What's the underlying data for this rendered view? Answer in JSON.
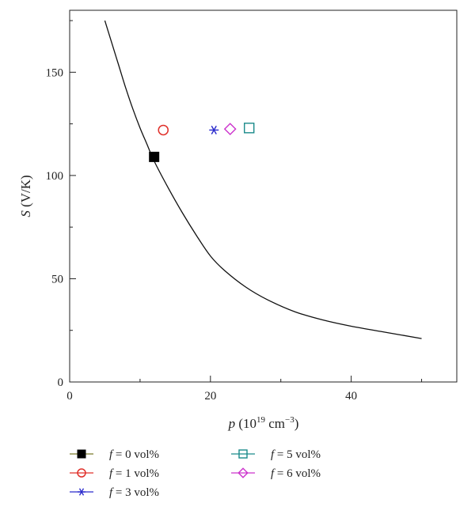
{
  "chart_data": {
    "type": "scatter",
    "title": "",
    "xlabel": {
      "var": "p",
      "prefix": " (10",
      "sup1": "19",
      "mid": " cm",
      "sup2": "−3",
      "suffix": ")"
    },
    "ylabel": {
      "var": "S",
      "rest": " (V/K)"
    },
    "xlim": [
      0,
      55
    ],
    "ylim": [
      0,
      180
    ],
    "xticks": [
      0,
      20,
      40
    ],
    "xticks_minor": [
      10,
      30,
      50
    ],
    "yticks": [
      0,
      50,
      100,
      150
    ],
    "yticks_minor": [
      25,
      75,
      125,
      175
    ],
    "grid": false,
    "legend_placement": "below",
    "curve": {
      "color": "#111111",
      "x": [
        5,
        6,
        7,
        8,
        9,
        10,
        11,
        12,
        14,
        16,
        18,
        20,
        22,
        25,
        28,
        32,
        36,
        40,
        45,
        50
      ],
      "y": [
        175,
        164,
        153,
        142,
        132,
        123,
        115,
        107,
        94,
        82,
        71,
        61,
        54,
        46,
        40,
        34,
        30,
        27,
        24,
        21
      ]
    },
    "series": [
      {
        "label": "= 0 vol%",
        "var": "f",
        "marker": "square-filled",
        "color": "#000000",
        "line_color": "#7a7a2a",
        "x": [
          12
        ],
        "y": [
          109
        ]
      },
      {
        "label": "= 1 vol%",
        "var": "f",
        "marker": "circle",
        "color": "#e0302a",
        "line_color": "#e0302a",
        "x": [
          13.3
        ],
        "y": [
          122
        ]
      },
      {
        "label": "= 3 vol%",
        "var": "f",
        "marker": "star",
        "color": "#2a2acc",
        "line_color": "#2a2acc",
        "x": [
          20.5
        ],
        "y": [
          122
        ]
      },
      {
        "label": "= 5 vol%",
        "var": "f",
        "marker": "square",
        "color": "#1a8a8a",
        "line_color": "#1a8a8a",
        "x": [
          25.5
        ],
        "y": [
          123
        ]
      },
      {
        "label": "= 6 vol%",
        "var": "f",
        "marker": "diamond",
        "color": "#cc33cc",
        "line_color": "#cc33cc",
        "x": [
          22.8
        ],
        "y": [
          122.5
        ]
      }
    ]
  }
}
